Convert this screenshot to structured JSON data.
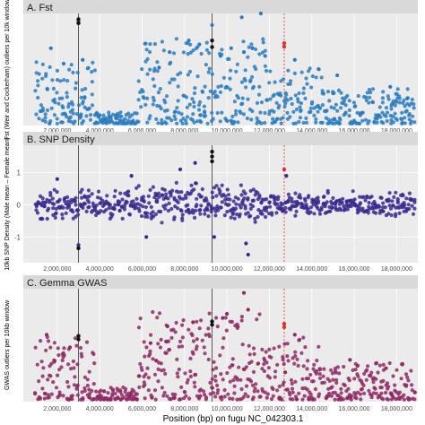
{
  "xlabel": "Position (bp) on fugu NC_042303.1",
  "colors": {
    "strip_bg": "#d9d9d9",
    "panel_bg": "#ebebeb",
    "grid": "#ffffff",
    "vline_black": "#333333",
    "vline_red": "#e03030",
    "highlight_black": "#111111",
    "highlight_red": "#e03030"
  },
  "chart_data": [
    {
      "type": "scatter",
      "title": "A. Fst",
      "ylabel": "Fst (Weir and Cockerham) outliers per 10k window",
      "xlim": [
        400000,
        19000000
      ],
      "ylim": [
        0,
        29
      ],
      "x_ticks": [
        2000000,
        4000000,
        6000000,
        8000000,
        10000000,
        12000000,
        14000000,
        16000000,
        18000000
      ],
      "x_tick_labels": [
        "2,000,000",
        "4,000,000",
        "6,000,000",
        "8,000,000",
        "10,000,000",
        "12,000,000",
        "14,000,000",
        "16,000,000",
        "18,000,000"
      ],
      "y_ticks": [],
      "grid": true,
      "point_color": "#2a7cc0",
      "vlines": [
        {
          "x": 3000000,
          "color": "vline_black"
        },
        {
          "x": 9300000,
          "color": "vline_black"
        },
        {
          "x": 12700000,
          "color": "vline_red"
        }
      ],
      "highlights": [
        {
          "x": 3000000,
          "y": 27.5,
          "color": "highlight_black"
        },
        {
          "x": 3000000,
          "y": 26.5,
          "color": "highlight_black"
        },
        {
          "x": 9300000,
          "y": 22,
          "color": "highlight_black"
        },
        {
          "x": 9300000,
          "y": 20.3,
          "color": "highlight_black"
        },
        {
          "x": 12700000,
          "y": 21.3,
          "color": "highlight_red"
        },
        {
          "x": 12700000,
          "y": 20.4,
          "color": "highlight_red"
        }
      ],
      "sample_points": [
        [
          3000000,
          27
        ],
        [
          9300000,
          26
        ],
        [
          10700000,
          28
        ],
        [
          11600000,
          29
        ],
        [
          1700000,
          20
        ],
        [
          2300000,
          16
        ],
        [
          3200000,
          17
        ],
        [
          7300000,
          19
        ],
        [
          8200000,
          22
        ],
        [
          10200000,
          20
        ],
        [
          10800000,
          19
        ],
        [
          11200000,
          20
        ],
        [
          11800000,
          18
        ],
        [
          13200000,
          17
        ],
        [
          8700000,
          21
        ],
        [
          9700000,
          18
        ],
        [
          6800000,
          15
        ],
        [
          15200000,
          13
        ],
        [
          17700000,
          10
        ],
        [
          18500000,
          7
        ]
      ],
      "distribution": {
        "x_range": [
          1000000,
          18900000
        ],
        "y_range": [
          0,
          29
        ],
        "baseline_y": 0.5,
        "segments": [
          {
            "from": 1000000,
            "to": 3800000,
            "peak": 16
          },
          {
            "from": 3800000,
            "to": 5800000,
            "peak": 3
          },
          {
            "from": 5800000,
            "to": 11800000,
            "peak": 22
          },
          {
            "from": 11800000,
            "to": 14500000,
            "peak": 15
          },
          {
            "from": 14500000,
            "to": 18900000,
            "peak": 9
          }
        ]
      }
    },
    {
      "type": "scatter",
      "title": "B. SNP Density",
      "ylabel": "10kb SNP Density (Male mean – Female mean)",
      "xlim": [
        400000,
        19000000
      ],
      "ylim": [
        -1.8,
        1.85
      ],
      "x_ticks": [
        2000000,
        4000000,
        6000000,
        8000000,
        10000000,
        12000000,
        14000000,
        16000000,
        18000000
      ],
      "x_tick_labels": [
        "2,000,000",
        "4,000,000",
        "6,000,000",
        "8,000,000",
        "10,000,000",
        "12,000,000",
        "14,000,000",
        "16,000,000",
        "18,000,000"
      ],
      "y_ticks": [
        -1,
        0,
        1
      ],
      "y_tick_labels": [
        "-1",
        "0",
        "1"
      ],
      "grid": true,
      "point_color": "#3b2a8e",
      "vlines": [
        {
          "x": 3000000,
          "color": "vline_black"
        },
        {
          "x": 9300000,
          "color": "vline_black"
        },
        {
          "x": 12700000,
          "color": "vline_red"
        }
      ],
      "highlights": [
        {
          "x": 9300000,
          "y": 1.65,
          "color": "highlight_black"
        },
        {
          "x": 9300000,
          "y": 1.5,
          "color": "highlight_black"
        },
        {
          "x": 9300000,
          "y": 1.35,
          "color": "highlight_black"
        },
        {
          "x": 3000000,
          "y": -1.35,
          "color": "highlight_black"
        },
        {
          "x": 12700000,
          "y": 1.1,
          "color": "highlight_red"
        }
      ],
      "sample_points": [
        [
          11000000,
          -1.55
        ],
        [
          10900000,
          -1.2
        ],
        [
          3000000,
          -1.25
        ],
        [
          9400000,
          -1.0
        ],
        [
          12800000,
          0.9
        ],
        [
          2000000,
          0.8
        ],
        [
          5500000,
          0.9
        ],
        [
          7800000,
          1.1
        ],
        [
          8500000,
          1.3
        ],
        [
          6200000,
          -1.0
        ]
      ],
      "distribution": {
        "x_range": [
          1000000,
          18900000
        ],
        "y_range": [
          -1.8,
          1.85
        ],
        "baseline_y": 0,
        "segments": [
          {
            "from": 1000000,
            "to": 5800000,
            "peak": 0.6
          },
          {
            "from": 5800000,
            "to": 11800000,
            "peak": 0.9
          },
          {
            "from": 11800000,
            "to": 18900000,
            "peak": 0.5
          }
        ]
      }
    },
    {
      "type": "scatter",
      "title": "C. Gemma GWAS",
      "ylabel": "GWAS outliers per 10kb window",
      "xlim": [
        400000,
        19000000
      ],
      "ylim": [
        0,
        27
      ],
      "x_ticks": [
        2000000,
        4000000,
        6000000,
        8000000,
        10000000,
        12000000,
        14000000,
        16000000,
        18000000
      ],
      "x_tick_labels": [
        "2,000,000",
        "4,000,000",
        "6,000,000",
        "8,000,000",
        "10,000,000",
        "12,000,000",
        "14,000,000",
        "16,000,000",
        "18,000,000"
      ],
      "y_ticks": [],
      "grid": true,
      "point_color": "#8e2a64",
      "vlines": [
        {
          "x": 3000000,
          "color": "vline_black"
        },
        {
          "x": 9300000,
          "color": "vline_black"
        },
        {
          "x": 12700000,
          "color": "vline_red"
        }
      ],
      "highlights": [
        {
          "x": 3000000,
          "y": 15.7,
          "color": "highlight_black"
        },
        {
          "x": 3000000,
          "y": 14.9,
          "color": "highlight_black"
        },
        {
          "x": 9300000,
          "y": 19.2,
          "color": "highlight_black"
        },
        {
          "x": 9300000,
          "y": 18.4,
          "color": "highlight_black"
        },
        {
          "x": 12700000,
          "y": 18.6,
          "color": "highlight_red"
        },
        {
          "x": 12700000,
          "y": 17.8,
          "color": "highlight_red"
        }
      ],
      "sample_points": [
        [
          10800000,
          26
        ],
        [
          11000000,
          22
        ],
        [
          10000000,
          21
        ],
        [
          9800000,
          20
        ],
        [
          1500000,
          16
        ],
        [
          2600000,
          13
        ],
        [
          7200000,
          18
        ],
        [
          8400000,
          19
        ],
        [
          13200000,
          16
        ],
        [
          15800000,
          10
        ],
        [
          17500000,
          8
        ],
        [
          6400000,
          14
        ]
      ],
      "distribution": {
        "x_range": [
          1000000,
          18900000
        ],
        "y_range": [
          0,
          27
        ],
        "baseline_y": 0.5,
        "segments": [
          {
            "from": 1000000,
            "to": 3800000,
            "peak": 15
          },
          {
            "from": 3800000,
            "to": 5800000,
            "peak": 3
          },
          {
            "from": 5800000,
            "to": 11800000,
            "peak": 21
          },
          {
            "from": 11800000,
            "to": 14500000,
            "peak": 15
          },
          {
            "from": 14500000,
            "to": 18900000,
            "peak": 9
          }
        ]
      }
    }
  ]
}
